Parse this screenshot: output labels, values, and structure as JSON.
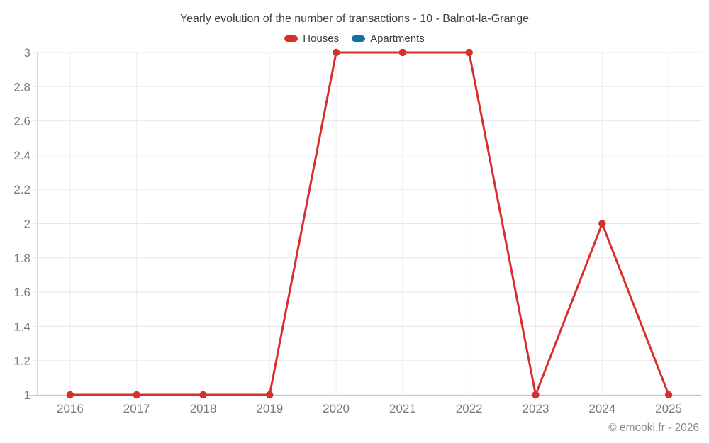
{
  "chart_data": {
    "type": "line",
    "title": "Yearly evolution of the number of transactions - 10 - Balnot-la-Grange",
    "categories": [
      "2016",
      "2017",
      "2018",
      "2019",
      "2020",
      "2021",
      "2022",
      "2023",
      "2024",
      "2025"
    ],
    "y_ticks": [
      "1",
      "1.2",
      "1.4",
      "1.6",
      "1.8",
      "2",
      "2.2",
      "2.4",
      "2.6",
      "2.8",
      "3"
    ],
    "ylim": [
      1,
      3
    ],
    "xlabel": "",
    "ylabel": "",
    "grid": true,
    "legend_position": "top",
    "series": [
      {
        "name": "Houses",
        "color": "#d6302e",
        "values": [
          1,
          1,
          1,
          1,
          3,
          3,
          3,
          1,
          2,
          1
        ]
      },
      {
        "name": "Apartments",
        "color": "#1271a3",
        "values": []
      }
    ]
  },
  "footer": {
    "watermark": "© emooki.fr - 2026"
  }
}
